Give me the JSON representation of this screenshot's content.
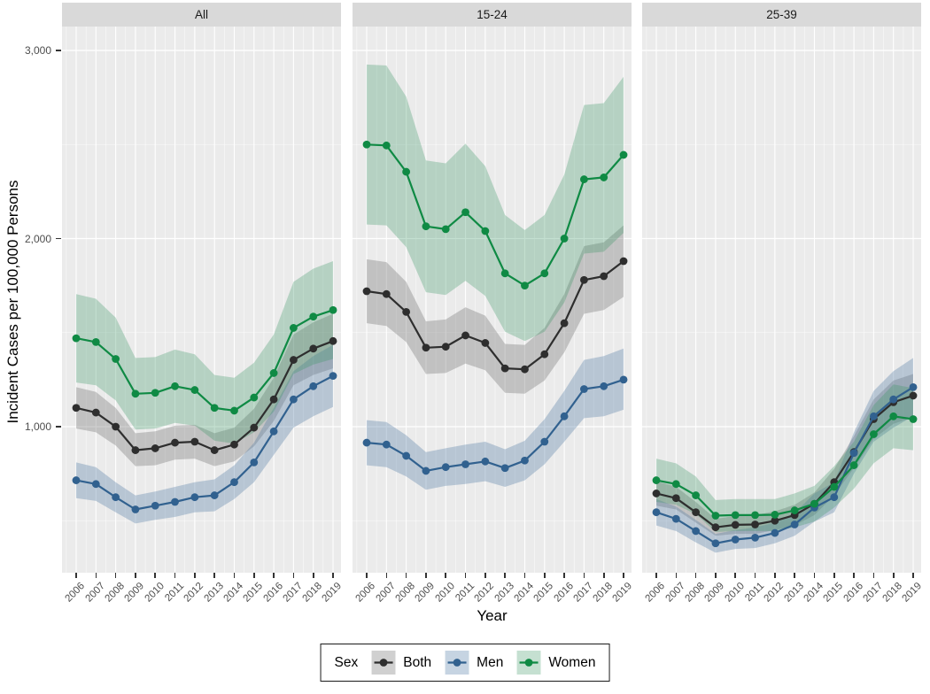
{
  "chart_data": {
    "type": "line",
    "title": "",
    "xlabel": "Year",
    "ylabel": "Incident Cases per 100,000 Persons",
    "x": [
      2006,
      2007,
      2008,
      2009,
      2010,
      2011,
      2012,
      2013,
      2014,
      2015,
      2016,
      2017,
      2018,
      2019
    ],
    "ylim": [
      225,
      3125
    ],
    "grid": true,
    "legend_position": "bottom",
    "y_ticks": [
      {
        "value": 1000,
        "label": "1,000"
      },
      {
        "value": 2000,
        "label": "2,000"
      },
      {
        "value": 3000,
        "label": "3,000"
      }
    ],
    "y_minor": [
      500,
      1500,
      2500
    ],
    "facets": [
      {
        "label": "All",
        "series": [
          {
            "name": "Both",
            "key": "both",
            "values": [
              1100,
              1075,
              1000,
              875,
              885,
              915,
              920,
              875,
              905,
              995,
              1145,
              1355,
              1415,
              1455
            ],
            "lower": [
              990,
              970,
              900,
              790,
              795,
              825,
              830,
              790,
              815,
              895,
              1030,
              1220,
              1275,
              1310
            ],
            "upper": [
              1210,
              1185,
              1100,
              965,
              975,
              1005,
              1010,
              965,
              995,
              1095,
              1260,
              1490,
              1555,
              1600
            ]
          },
          {
            "name": "Men",
            "key": "men",
            "values": [
              715,
              695,
              625,
              560,
              580,
              600,
              625,
              635,
              705,
              810,
              975,
              1145,
              1215,
              1270
            ],
            "lower": [
              620,
              605,
              545,
              485,
              505,
              520,
              545,
              550,
              615,
              705,
              850,
              995,
              1055,
              1105
            ],
            "upper": [
              810,
              785,
              705,
              635,
              655,
              680,
              705,
              720,
              795,
              915,
              1100,
              1295,
              1375,
              1435
            ]
          },
          {
            "name": "Women",
            "key": "women",
            "values": [
              1470,
              1450,
              1360,
              1175,
              1180,
              1215,
              1195,
              1100,
              1085,
              1155,
              1285,
              1525,
              1585,
              1620
            ],
            "lower": [
              1235,
              1220,
              1140,
              985,
              990,
              1020,
              1005,
              925,
              910,
              970,
              1080,
              1280,
              1330,
              1360
            ],
            "upper": [
              1705,
              1680,
              1580,
              1365,
              1370,
              1410,
              1385,
              1275,
              1260,
              1340,
              1490,
              1770,
              1840,
              1880
            ]
          }
        ]
      },
      {
        "label": "15-24",
        "series": [
          {
            "name": "Both",
            "key": "both",
            "values": [
              1720,
              1705,
              1610,
              1420,
              1425,
              1485,
              1445,
              1310,
              1305,
              1385,
              1550,
              1780,
              1800,
              1880
            ],
            "lower": [
              1550,
              1535,
              1450,
              1280,
              1285,
              1335,
              1300,
              1180,
              1175,
              1245,
              1395,
              1600,
              1620,
              1690
            ],
            "upper": [
              1890,
              1875,
              1770,
              1560,
              1570,
              1635,
              1590,
              1440,
              1435,
              1525,
              1705,
              1960,
              1980,
              2070
            ]
          },
          {
            "name": "Men",
            "key": "men",
            "values": [
              915,
              905,
              845,
              765,
              785,
              800,
              815,
              780,
              820,
              920,
              1055,
              1200,
              1215,
              1250
            ],
            "lower": [
              795,
              785,
              735,
              665,
              685,
              695,
              710,
              680,
              715,
              800,
              920,
              1045,
              1055,
              1090
            ],
            "upper": [
              1035,
              1025,
              955,
              865,
              885,
              905,
              920,
              880,
              925,
              1040,
              1190,
              1355,
              1375,
              1415
            ]
          },
          {
            "name": "Women",
            "key": "women",
            "values": [
              2500,
              2495,
              2355,
              2065,
              2050,
              2140,
              2040,
              1815,
              1750,
              1815,
              2000,
              2315,
              2325,
              2445
            ],
            "lower": [
              2075,
              2070,
              1955,
              1715,
              1700,
              1775,
              1695,
              1505,
              1455,
              1505,
              1660,
              1920,
              1930,
              2030
            ],
            "upper": [
              2925,
              2920,
              2755,
              2415,
              2400,
              2505,
              2385,
              2125,
              2045,
              2125,
              2340,
              2710,
              2720,
              2860
            ]
          }
        ]
      },
      {
        "label": "25-39",
        "series": [
          {
            "name": "Both",
            "key": "both",
            "values": [
              645,
              620,
              545,
              465,
              478,
              480,
              500,
              530,
              590,
              705,
              865,
              1040,
              1130,
              1165
            ],
            "lower": [
              580,
              560,
              490,
              420,
              430,
              430,
              450,
              475,
              530,
              635,
              780,
              935,
              1015,
              1050
            ],
            "upper": [
              710,
              680,
              600,
              510,
              525,
              530,
              550,
              585,
              650,
              775,
              950,
              1145,
              1245,
              1280
            ]
          },
          {
            "name": "Men",
            "key": "men",
            "values": [
              545,
              510,
              445,
              380,
              400,
              410,
              435,
              480,
              570,
              625,
              860,
              1055,
              1145,
              1210
            ],
            "lower": [
              475,
              445,
              385,
              330,
              350,
              355,
              380,
              420,
              495,
              545,
              750,
              920,
              995,
              1055
            ],
            "upper": [
              615,
              575,
              505,
              430,
              450,
              465,
              490,
              540,
              645,
              705,
              970,
              1190,
              1295,
              1365
            ]
          },
          {
            "name": "Women",
            "key": "women",
            "values": [
              715,
              695,
              635,
              527,
              530,
              530,
              532,
              555,
              590,
              680,
              795,
              960,
              1055,
              1040
            ],
            "lower": [
              600,
              585,
              535,
              440,
              445,
              445,
              445,
              465,
              495,
              570,
              670,
              805,
              885,
              875
            ],
            "upper": [
              830,
              805,
              735,
              610,
              615,
              615,
              615,
              645,
              685,
              790,
              920,
              1115,
              1225,
              1205
            ]
          }
        ]
      }
    ]
  },
  "legend": {
    "title": "Sex",
    "entries": [
      {
        "key": "both",
        "label": "Both",
        "color": "#2E2E2E",
        "swatch_bg": "#D0D0D0"
      },
      {
        "key": "men",
        "label": "Men",
        "color": "#31618F",
        "swatch_bg": "#C6D4E2"
      },
      {
        "key": "women",
        "label": "Women",
        "color": "#0F8A44",
        "swatch_bg": "#C5E0D1"
      }
    ]
  },
  "style": {
    "panel_bg": "#EBEBEB",
    "strip_bg": "#D9D9D9",
    "grid_color": "#FFFFFF",
    "axis_text": "#4D4D4D",
    "series_colors": {
      "both": "#2E2E2E",
      "men": "#31618F",
      "women": "#0F8A44"
    },
    "ribbon_colors": {
      "both": "rgba(115,115,115,0.35)",
      "men": "rgba(85,125,165,0.35)",
      "women": "rgba(55,150,100,0.30)"
    }
  }
}
